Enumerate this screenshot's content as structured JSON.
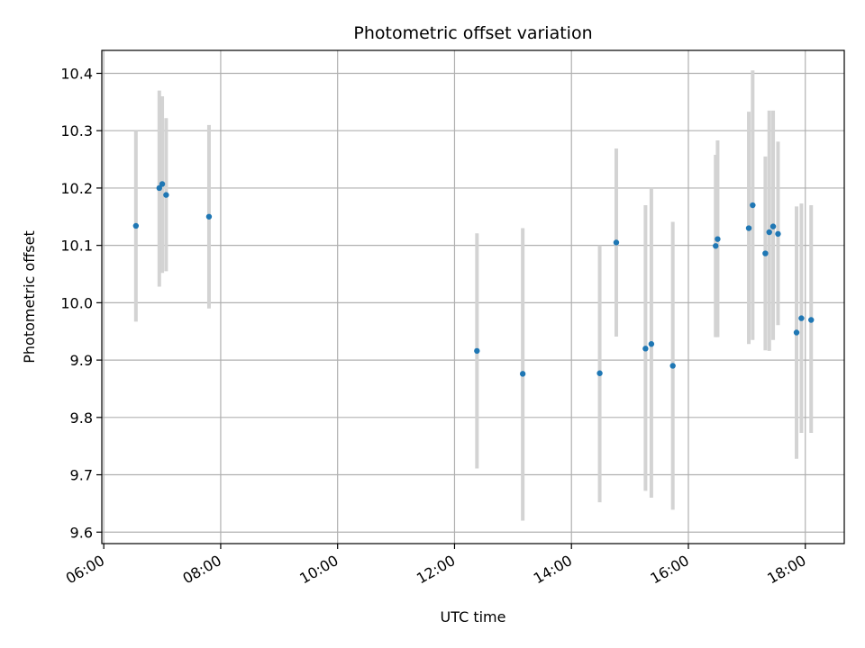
{
  "chart_data": {
    "type": "scatter",
    "title": "Photometric offset variation",
    "xlabel": "UTC time",
    "ylabel": "Photometric offset",
    "x_axis_type": "time",
    "xlim": [
      "05:58",
      "18:40"
    ],
    "ylim": [
      9.58,
      10.44
    ],
    "x_ticks": [
      "06:00",
      "08:00",
      "10:00",
      "12:00",
      "14:00",
      "16:00",
      "18:00"
    ],
    "y_ticks": [
      "9.6",
      "9.7",
      "9.8",
      "9.9",
      "10.0",
      "10.1",
      "10.2",
      "10.3",
      "10.4"
    ],
    "grid": true,
    "legend": "none",
    "colors": {
      "point": "#1f77b4",
      "errorbar": "#d3d3d3",
      "grid": "#b0b0b0"
    },
    "series": [
      {
        "points": [
          {
            "x": "06:33",
            "y": 10.134,
            "err_low": 9.967,
            "err_high": 10.3
          },
          {
            "x": "06:57",
            "y": 10.2,
            "err_low": 10.028,
            "err_high": 10.37
          },
          {
            "x": "07:00",
            "y": 10.207,
            "err_low": 10.052,
            "err_high": 10.36
          },
          {
            "x": "07:04",
            "y": 10.188,
            "err_low": 10.055,
            "err_high": 10.322
          },
          {
            "x": "07:48",
            "y": 10.15,
            "err_low": 9.99,
            "err_high": 10.31
          },
          {
            "x": "12:23",
            "y": 9.916,
            "err_low": 9.711,
            "err_high": 10.121
          },
          {
            "x": "13:10",
            "y": 9.876,
            "err_low": 9.62,
            "err_high": 10.13
          },
          {
            "x": "14:29",
            "y": 9.877,
            "err_low": 9.652,
            "err_high": 10.1
          },
          {
            "x": "14:46",
            "y": 10.105,
            "err_low": 9.941,
            "err_high": 10.269
          },
          {
            "x": "15:16",
            "y": 9.92,
            "err_low": 9.672,
            "err_high": 10.17
          },
          {
            "x": "15:22",
            "y": 9.928,
            "err_low": 9.66,
            "err_high": 10.2
          },
          {
            "x": "15:44",
            "y": 9.89,
            "err_low": 9.639,
            "err_high": 10.141
          },
          {
            "x": "16:28",
            "y": 10.099,
            "err_low": 9.94,
            "err_high": 10.258
          },
          {
            "x": "16:30",
            "y": 10.111,
            "err_low": 9.94,
            "err_high": 10.283
          },
          {
            "x": "17:02",
            "y": 10.13,
            "err_low": 9.928,
            "err_high": 10.333
          },
          {
            "x": "17:06",
            "y": 10.17,
            "err_low": 9.935,
            "err_high": 10.405
          },
          {
            "x": "17:19",
            "y": 10.086,
            "err_low": 9.917,
            "err_high": 10.255
          },
          {
            "x": "17:23",
            "y": 10.123,
            "err_low": 9.916,
            "err_high": 10.335
          },
          {
            "x": "17:27",
            "y": 10.133,
            "err_low": 9.935,
            "err_high": 10.335
          },
          {
            "x": "17:32",
            "y": 10.12,
            "err_low": 9.961,
            "err_high": 10.281
          },
          {
            "x": "17:51",
            "y": 9.948,
            "err_low": 9.728,
            "err_high": 10.168
          },
          {
            "x": "17:56",
            "y": 9.973,
            "err_low": 9.773,
            "err_high": 10.173
          },
          {
            "x": "18:06",
            "y": 9.97,
            "err_low": 9.773,
            "err_high": 10.17
          }
        ]
      }
    ]
  }
}
